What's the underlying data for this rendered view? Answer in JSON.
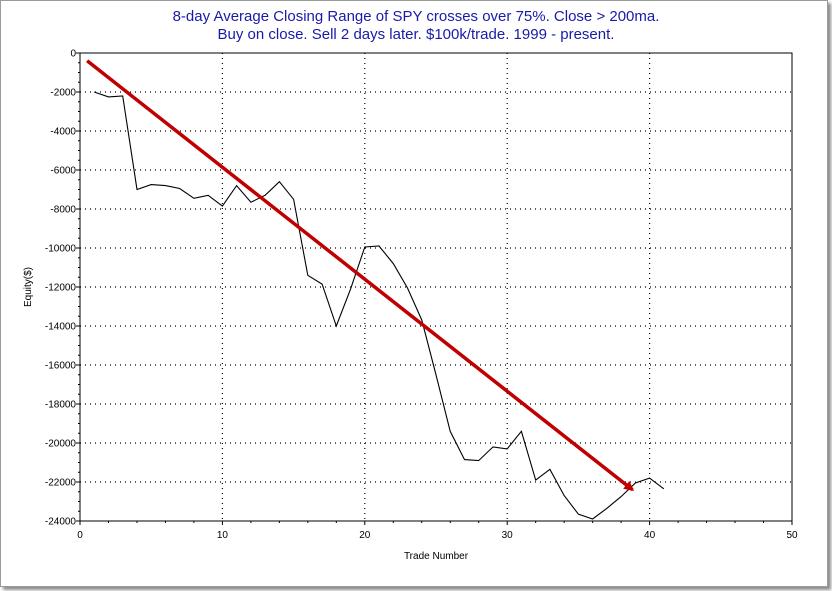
{
  "chart_data": {
    "type": "line",
    "title": "8-day Average Closing Range of SPY crosses over 75%. Close > 200ma.",
    "subtitle": "Buy on close. Sell 2 days later. $100k/trade. 1999 - present.",
    "xlabel": "Trade Number",
    "ylabel": "Equity($)",
    "xlim": [
      0,
      50
    ],
    "ylim": [
      -24000,
      0
    ],
    "xticks": [
      0,
      10,
      20,
      30,
      40,
      50
    ],
    "yticks": [
      0,
      -2000,
      -4000,
      -6000,
      -8000,
      -10000,
      -12000,
      -14000,
      -16000,
      -18000,
      -20000,
      -22000,
      -24000
    ],
    "grid": true,
    "series": [
      {
        "color": "#000000",
        "x": [
          1,
          2,
          3,
          4,
          5,
          6,
          7,
          8,
          9,
          10,
          11,
          12,
          13,
          14,
          15,
          16,
          17,
          18,
          19,
          20,
          21,
          22,
          23,
          24,
          25,
          26,
          27,
          28,
          29,
          30,
          31,
          32,
          33,
          34,
          35,
          36,
          37,
          38,
          39,
          40,
          41
        ],
        "y": [
          -2000,
          -2250,
          -2200,
          -7000,
          -6750,
          -6800,
          -6950,
          -7450,
          -7300,
          -7850,
          -6800,
          -7650,
          -7300,
          -6600,
          -7500,
          -11400,
          -11850,
          -14000,
          -12100,
          -9950,
          -9900,
          -10800,
          -12050,
          -13700,
          -16500,
          -19400,
          -20850,
          -20900,
          -20200,
          -20300,
          -19400,
          -21900,
          -21350,
          -22700,
          -23650,
          -23900,
          -23350,
          -22750,
          -22050,
          -21800,
          -22350
        ]
      }
    ],
    "annotations": [
      {
        "type": "arrow",
        "color": "#c00000",
        "from": [
          0.5,
          -400
        ],
        "to": [
          38.8,
          -22400
        ]
      }
    ]
  }
}
